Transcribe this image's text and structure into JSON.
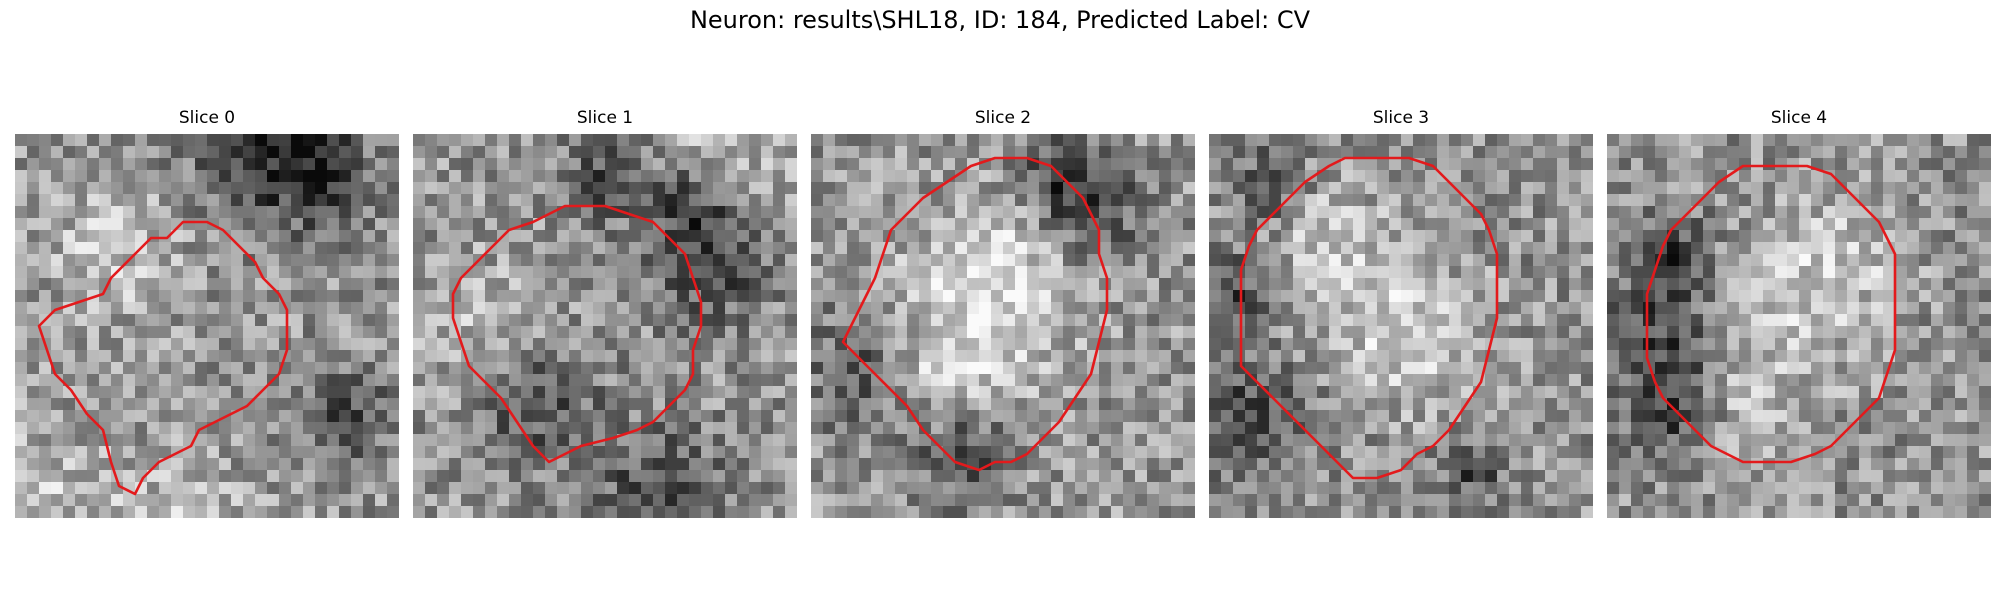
{
  "figure": {
    "title": "Neuron: results\\SHL18, ID: 184, Predicted Label: CV",
    "outline_color": "#e31a1c"
  },
  "panels": [
    {
      "title": "Slice 0",
      "seed": 11,
      "bg": 150,
      "outline": [
        [
          36,
          45
        ],
        [
          37,
          43
        ],
        [
          40,
          40
        ],
        [
          42,
          38
        ],
        [
          44,
          38
        ],
        [
          46,
          36
        ],
        [
          49,
          36
        ],
        [
          51,
          37
        ],
        [
          53,
          39
        ],
        [
          55,
          41
        ],
        [
          56,
          43
        ],
        [
          58,
          45
        ],
        [
          59,
          47
        ],
        [
          59,
          52
        ],
        [
          58,
          55
        ],
        [
          56,
          57
        ],
        [
          54,
          59
        ],
        [
          52,
          60
        ],
        [
          50,
          61
        ],
        [
          48,
          62
        ],
        [
          47,
          64
        ],
        [
          45,
          65
        ],
        [
          43,
          66
        ],
        [
          41,
          68
        ],
        [
          40,
          70
        ],
        [
          38,
          69
        ],
        [
          37,
          66
        ],
        [
          36,
          62
        ],
        [
          34,
          60
        ],
        [
          32,
          57
        ],
        [
          30,
          55
        ],
        [
          29,
          52
        ],
        [
          28,
          49
        ],
        [
          30,
          47
        ],
        [
          33,
          46
        ]
      ],
      "dark": [
        [
          62,
          30,
          8
        ],
        [
          56,
          25,
          9
        ],
        [
          45,
          18,
          7
        ],
        [
          66,
          60,
          6
        ]
      ],
      "light": [
        [
          45,
          75,
          9
        ],
        [
          26,
          70,
          9
        ],
        [
          37,
          40,
          8
        ]
      ]
    },
    {
      "title": "Slice 1",
      "seed": 23,
      "bg": 148,
      "outline": [
        [
          40,
          36
        ],
        [
          44,
          34
        ],
        [
          49,
          34
        ],
        [
          52,
          35
        ],
        [
          55,
          36
        ],
        [
          57,
          38
        ],
        [
          59,
          40
        ],
        [
          60,
          43
        ],
        [
          61,
          46
        ],
        [
          61,
          49
        ],
        [
          60,
          52
        ],
        [
          60,
          55
        ],
        [
          59,
          57
        ],
        [
          57,
          59
        ],
        [
          55,
          61
        ],
        [
          53,
          62
        ],
        [
          50,
          63
        ],
        [
          46,
          64
        ],
        [
          44,
          65
        ],
        [
          42,
          66
        ],
        [
          40,
          64
        ],
        [
          38,
          61
        ],
        [
          36,
          58
        ],
        [
          34,
          56
        ],
        [
          32,
          54
        ],
        [
          31,
          51
        ],
        [
          30,
          48
        ],
        [
          30,
          45
        ],
        [
          31,
          43
        ],
        [
          33,
          41
        ],
        [
          35,
          39
        ],
        [
          37,
          37
        ]
      ],
      "dark": [
        [
          50,
          30,
          6
        ],
        [
          62,
          42,
          7
        ],
        [
          40,
          58,
          8
        ],
        [
          56,
          70,
          8
        ],
        [
          60,
          34,
          5
        ]
      ],
      "light": [
        [
          35,
          50,
          9
        ],
        [
          62,
          24,
          9
        ],
        [
          78,
          32,
          7
        ]
      ]
    },
    {
      "title": "Slice 2",
      "seed": 37,
      "bg": 150,
      "outline": [
        [
          45,
          29
        ],
        [
          48,
          28
        ],
        [
          52,
          28
        ],
        [
          55,
          29
        ],
        [
          57,
          31
        ],
        [
          59,
          33
        ],
        [
          60,
          35
        ],
        [
          61,
          37
        ],
        [
          61,
          40
        ],
        [
          62,
          43
        ],
        [
          62,
          47
        ],
        [
          61,
          51
        ],
        [
          60,
          55
        ],
        [
          58,
          58
        ],
        [
          56,
          61
        ],
        [
          54,
          63
        ],
        [
          52,
          65
        ],
        [
          50,
          66
        ],
        [
          48,
          66
        ],
        [
          46,
          67
        ],
        [
          43,
          66
        ],
        [
          41,
          64
        ],
        [
          39,
          62
        ],
        [
          37,
          59
        ],
        [
          35,
          57
        ],
        [
          33,
          55
        ],
        [
          31,
          53
        ],
        [
          29,
          51
        ],
        [
          30,
          49
        ],
        [
          31,
          47
        ],
        [
          32,
          45
        ],
        [
          33,
          43
        ],
        [
          34,
          40
        ],
        [
          35,
          37
        ],
        [
          37,
          35
        ],
        [
          39,
          33
        ],
        [
          42,
          31
        ]
      ],
      "dark": [
        [
          60,
          35,
          7
        ],
        [
          32,
          55,
          8
        ],
        [
          44,
          65,
          6
        ],
        [
          56,
          30,
          5
        ]
      ],
      "light": [
        [
          45,
          48,
          12
        ],
        [
          50,
          42,
          9
        ],
        [
          40,
          55,
          7
        ]
      ]
    },
    {
      "title": "Slice 3",
      "seed": 53,
      "bg": 146,
      "outline": [
        [
          42,
          28
        ],
        [
          46,
          28
        ],
        [
          50,
          28
        ],
        [
          53,
          29
        ],
        [
          55,
          31
        ],
        [
          57,
          33
        ],
        [
          59,
          35
        ],
        [
          60,
          37
        ],
        [
          61,
          40
        ],
        [
          61,
          44
        ],
        [
          61,
          48
        ],
        [
          60,
          52
        ],
        [
          59,
          56
        ],
        [
          57,
          59
        ],
        [
          55,
          62
        ],
        [
          53,
          64
        ],
        [
          51,
          65
        ],
        [
          49,
          67
        ],
        [
          46,
          68
        ],
        [
          43,
          68
        ],
        [
          41,
          66
        ],
        [
          39,
          64
        ],
        [
          37,
          62
        ],
        [
          35,
          60
        ],
        [
          33,
          58
        ],
        [
          31,
          56
        ],
        [
          29,
          54
        ],
        [
          29,
          50
        ],
        [
          29,
          46
        ],
        [
          29,
          42
        ],
        [
          30,
          39
        ],
        [
          31,
          37
        ],
        [
          33,
          35
        ],
        [
          35,
          33
        ],
        [
          37,
          31
        ],
        [
          40,
          29
        ]
      ],
      "dark": [
        [
          30,
          60,
          7
        ],
        [
          28,
          45,
          5
        ],
        [
          33,
          32,
          5
        ],
        [
          58,
          67,
          4
        ]
      ],
      "light": [
        [
          45,
          45,
          10
        ],
        [
          52,
          52,
          8
        ],
        [
          38,
          36,
          6
        ]
      ]
    },
    {
      "title": "Slice 4",
      "seed": 71,
      "bg": 146,
      "outline": [
        [
          42,
          29
        ],
        [
          46,
          29
        ],
        [
          50,
          29
        ],
        [
          53,
          30
        ],
        [
          55,
          32
        ],
        [
          57,
          34
        ],
        [
          59,
          36
        ],
        [
          60,
          38
        ],
        [
          61,
          40
        ],
        [
          61,
          44
        ],
        [
          61,
          48
        ],
        [
          61,
          52
        ],
        [
          60,
          55
        ],
        [
          59,
          58
        ],
        [
          57,
          60
        ],
        [
          55,
          62
        ],
        [
          53,
          64
        ],
        [
          51,
          65
        ],
        [
          48,
          66
        ],
        [
          45,
          66
        ],
        [
          42,
          66
        ],
        [
          40,
          65
        ],
        [
          38,
          64
        ],
        [
          36,
          62
        ],
        [
          34,
          60
        ],
        [
          32,
          58
        ],
        [
          31,
          56
        ],
        [
          30,
          53
        ],
        [
          30,
          49
        ],
        [
          30,
          45
        ],
        [
          31,
          42
        ],
        [
          32,
          39
        ],
        [
          33,
          37
        ],
        [
          35,
          35
        ],
        [
          37,
          33
        ],
        [
          39,
          31
        ]
      ],
      "dark": [
        [
          32,
          50,
          8
        ],
        [
          33,
          40,
          5
        ],
        [
          34,
          60,
          6
        ]
      ],
      "light": [
        [
          46,
          48,
          10
        ],
        [
          55,
          40,
          8
        ],
        [
          42,
          60,
          7
        ]
      ]
    }
  ],
  "grid": {
    "size": 32,
    "coord_min": 25,
    "coord_max": 73
  }
}
